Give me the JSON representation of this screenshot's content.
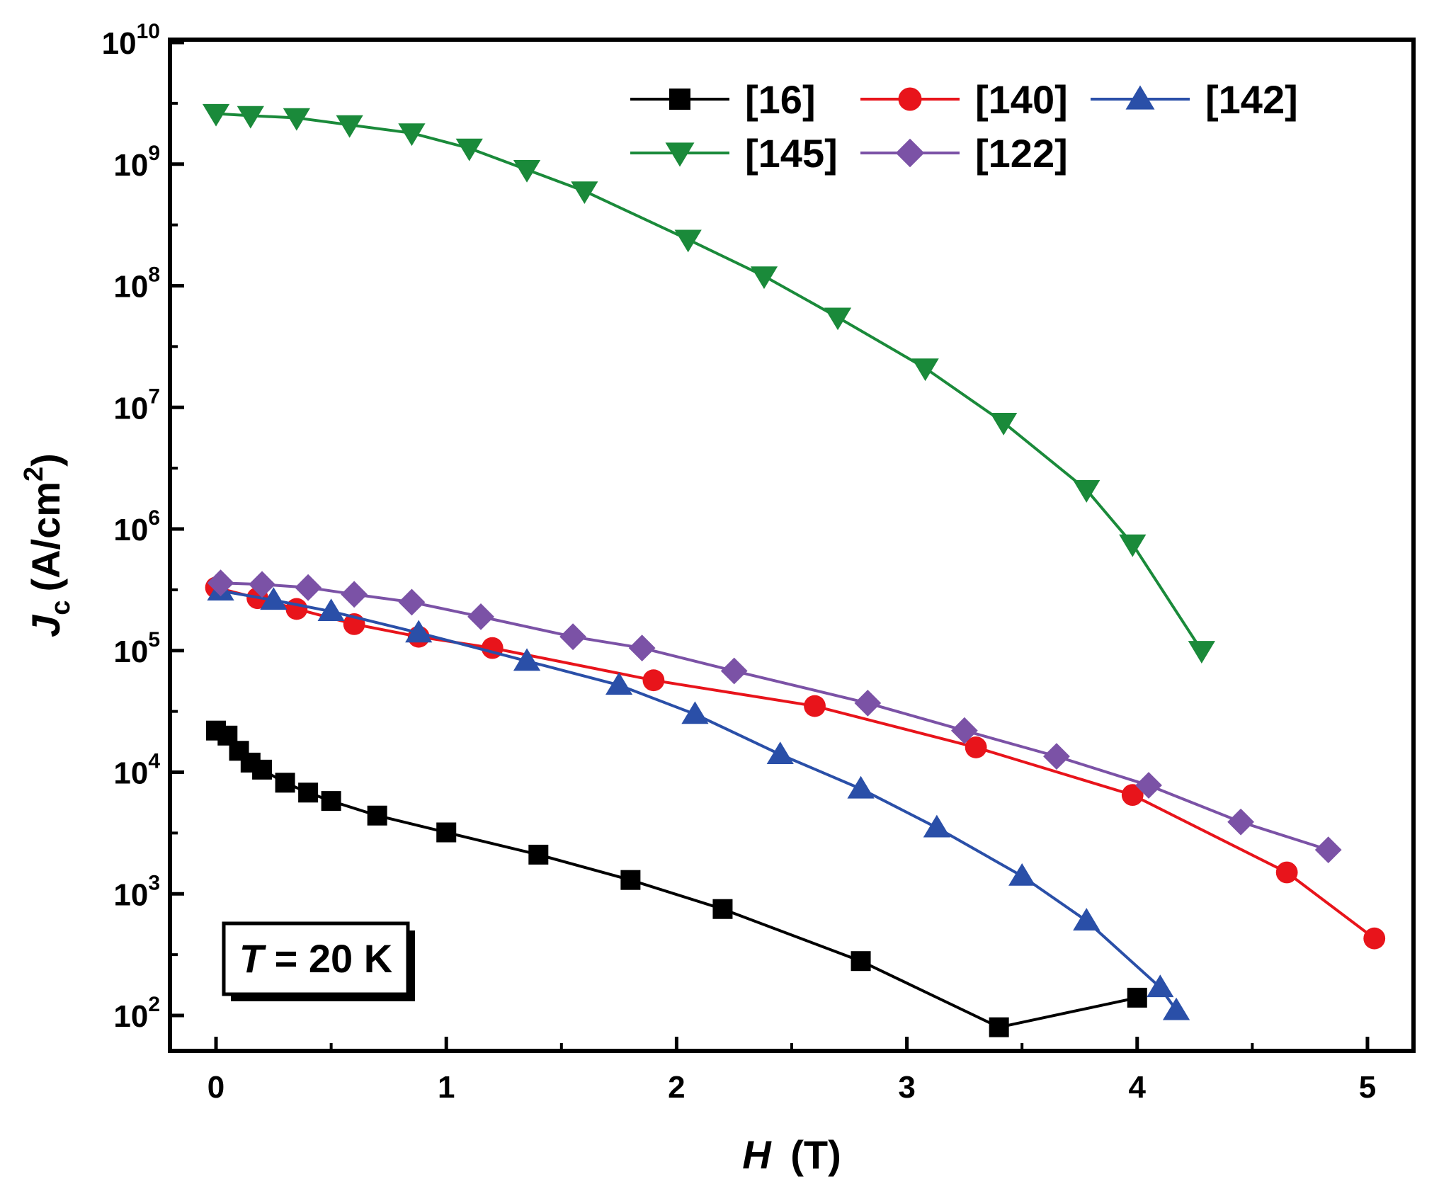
{
  "chart_data": {
    "type": "line",
    "x_label": {
      "var": "H",
      "unit": "(T)"
    },
    "y_label": {
      "var": "J",
      "sub": "c",
      "unit_pre": "(A/cm",
      "unit_sup": "2",
      "unit_post": ")"
    },
    "xlim": [
      -0.2,
      5.2
    ],
    "ylim_exponent": [
      2,
      10
    ],
    "y_scale": "log",
    "x_ticks": [
      "0",
      "1",
      "2",
      "3",
      "4",
      "5"
    ],
    "x_tick_values": [
      0,
      1,
      2,
      3,
      4,
      5
    ],
    "y_ticks": [
      {
        "base": "10",
        "exp": "2",
        "value": 2
      },
      {
        "base": "10",
        "exp": "3",
        "value": 3
      },
      {
        "base": "10",
        "exp": "4",
        "value": 4
      },
      {
        "base": "10",
        "exp": "5",
        "value": 5
      },
      {
        "base": "10",
        "exp": "6",
        "value": 6
      },
      {
        "base": "10",
        "exp": "7",
        "value": 7
      },
      {
        "base": "10",
        "exp": "8",
        "value": 8
      },
      {
        "base": "10",
        "exp": "9",
        "value": 9
      },
      {
        "base": "10",
        "exp": "10",
        "value": 10
      }
    ],
    "annotation": {
      "var": "T",
      "text": " = 20 K"
    },
    "legend_placement": "top-right",
    "series": [
      {
        "name": "[16]",
        "color": "#000000",
        "marker": "square",
        "x": [
          0.0,
          0.05,
          0.1,
          0.15,
          0.2,
          0.3,
          0.4,
          0.5,
          0.7,
          1.0,
          1.4,
          1.8,
          2.2,
          2.8,
          3.4,
          4.0
        ],
        "y": [
          22000,
          20000,
          15000,
          12000,
          10500,
          8200,
          6800,
          5800,
          4400,
          3200,
          2100,
          1300,
          750,
          280,
          80,
          140
        ]
      },
      {
        "name": "[140]",
        "color": "#e8141b",
        "marker": "circle",
        "x": [
          0.0,
          0.18,
          0.35,
          0.6,
          0.88,
          1.2,
          1.9,
          2.6,
          3.3,
          3.98,
          4.65,
          5.03
        ],
        "y": [
          330000,
          270000,
          220000,
          165000,
          130000,
          105000,
          57000,
          35000,
          16000,
          6500,
          1500,
          430
        ]
      },
      {
        "name": "[142]",
        "color": "#2a4fa8",
        "marker": "triangle-up",
        "x": [
          0.02,
          0.25,
          0.5,
          0.88,
          1.35,
          1.75,
          2.08,
          2.45,
          2.8,
          3.13,
          3.5,
          3.78,
          4.1,
          4.17
        ],
        "y": [
          310000,
          260000,
          210000,
          140000,
          82000,
          52000,
          30000,
          14000,
          7300,
          3500,
          1400,
          600,
          170,
          110
        ]
      },
      {
        "name": "[145]",
        "color": "#1a8a3a",
        "marker": "triangle-down",
        "x": [
          0.0,
          0.15,
          0.35,
          0.58,
          0.85,
          1.1,
          1.35,
          1.6,
          2.05,
          2.38,
          2.7,
          3.08,
          3.42,
          3.78,
          3.98,
          4.28
        ],
        "y": [
          2600000000.0,
          2500000000.0,
          2400000000.0,
          2100000000.0,
          1800000000.0,
          1350000000.0,
          900000000.0,
          600000000.0,
          240000000.0,
          120000000.0,
          55000000.0,
          21000000.0,
          7500000.0,
          2100000.0,
          750000.0,
          100000.0
        ]
      },
      {
        "name": "[122]",
        "color": "#7b52a6",
        "marker": "diamond",
        "x": [
          0.02,
          0.2,
          0.4,
          0.6,
          0.85,
          1.15,
          1.55,
          1.85,
          2.25,
          2.83,
          3.25,
          3.65,
          4.05,
          4.45,
          4.83
        ],
        "y": [
          360000,
          350000,
          330000,
          290000,
          250000,
          190000,
          130000,
          105000,
          68000,
          37000,
          22000,
          13500,
          7800,
          3900,
          2300
        ]
      }
    ]
  }
}
